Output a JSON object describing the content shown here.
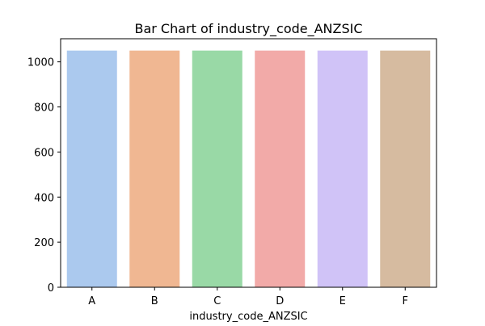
{
  "chart_data": {
    "type": "bar",
    "title": "Bar Chart of industry_code_ANZSIC",
    "xlabel": "industry_code_ANZSIC",
    "ylabel": "",
    "categories": [
      "A",
      "B",
      "C",
      "D",
      "E",
      "F"
    ],
    "values": [
      1050,
      1050,
      1050,
      1050,
      1050,
      1050
    ],
    "colors": [
      "#abc9ee",
      "#f0b792",
      "#99d9a6",
      "#f2aaa8",
      "#d0c3f7",
      "#d6bba0"
    ],
    "ylim": [
      0,
      1102.5
    ],
    "yticks": [
      0,
      200,
      400,
      600,
      800,
      1000
    ],
    "grid": false,
    "legend": "none"
  }
}
